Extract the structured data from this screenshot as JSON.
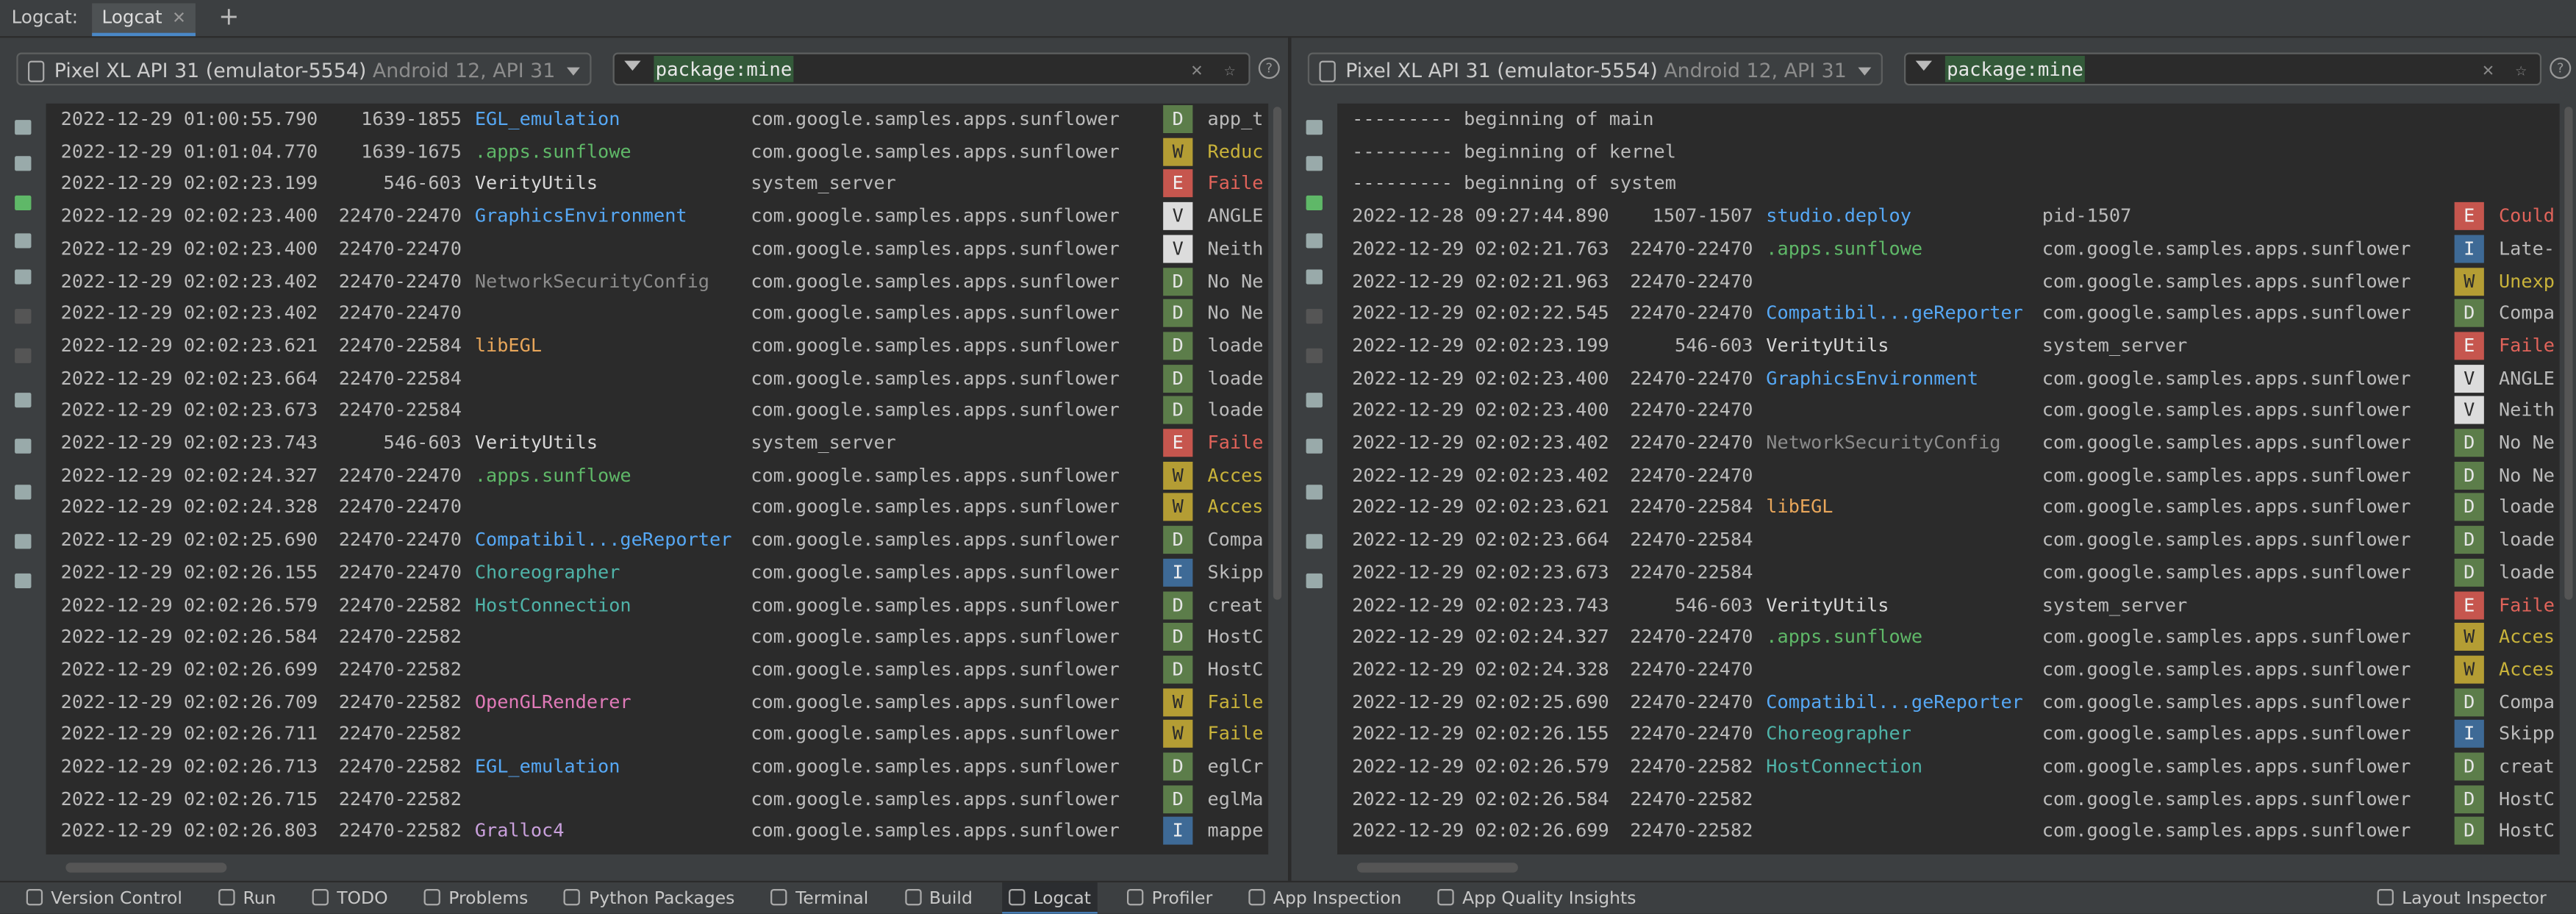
{
  "tabs": {
    "label": "Logcat:",
    "active_tab": "Logcat"
  },
  "panes": [
    {
      "device": "Pixel XL API 31 (emulator-5554)",
      "device_detail": "Android 12, API 31",
      "filter": "package:mine",
      "rows": [
        {
          "time": "2022-12-29 01:00:55.790",
          "pid": "1639-1855",
          "tag": "EGL_emulation",
          "tag_color": "#56a8f5",
          "package": "com.google.samples.apps.sunflower",
          "level": "D",
          "message": "app_t"
        },
        {
          "time": "2022-12-29 01:01:04.770",
          "pid": "1639-1675",
          "tag": ".apps.sunflowe",
          "tag_color": "#5fb868",
          "package": "com.google.samples.apps.sunflower",
          "level": "W",
          "message": "Reduc"
        },
        {
          "time": "2022-12-29 02:02:23.199",
          "pid": "546-603",
          "tag": "VerityUtils",
          "tag_color": "#d8d8d8",
          "package": "system_server",
          "level": "E",
          "message": "Faile"
        },
        {
          "time": "2022-12-29 02:02:23.400",
          "pid": "22470-22470",
          "tag": "GraphicsEnvironment",
          "tag_color": "#56a8f5",
          "package": "com.google.samples.apps.sunflower",
          "level": "V",
          "message": "ANGLE"
        },
        {
          "time": "2022-12-29 02:02:23.400",
          "pid": "22470-22470",
          "package": "com.google.samples.apps.sunflower",
          "level": "V",
          "message": "Neith"
        },
        {
          "time": "2022-12-29 02:02:23.402",
          "pid": "22470-22470",
          "tag": "NetworkSecurityConfig",
          "tag_color": "#8c8c8c",
          "package": "com.google.samples.apps.sunflower",
          "level": "D",
          "message": "No Ne"
        },
        {
          "time": "2022-12-29 02:02:23.402",
          "pid": "22470-22470",
          "package": "com.google.samples.apps.sunflower",
          "level": "D",
          "message": "No Ne"
        },
        {
          "time": "2022-12-29 02:02:23.621",
          "pid": "22470-22584",
          "tag": "libEGL",
          "tag_color": "#e8a65a",
          "package": "com.google.samples.apps.sunflower",
          "level": "D",
          "message": "loade"
        },
        {
          "time": "2022-12-29 02:02:23.664",
          "pid": "22470-22584",
          "package": "com.google.samples.apps.sunflower",
          "level": "D",
          "message": "loade"
        },
        {
          "time": "2022-12-29 02:02:23.673",
          "pid": "22470-22584",
          "package": "com.google.samples.apps.sunflower",
          "level": "D",
          "message": "loade"
        },
        {
          "time": "2022-12-29 02:02:23.743",
          "pid": "546-603",
          "tag": "VerityUtils",
          "tag_color": "#d8d8d8",
          "package": "system_server",
          "level": "E",
          "message": "Faile"
        },
        {
          "time": "2022-12-29 02:02:24.327",
          "pid": "22470-22470",
          "tag": ".apps.sunflowe",
          "tag_color": "#5fb868",
          "package": "com.google.samples.apps.sunflower",
          "level": "W",
          "message": "Acces"
        },
        {
          "time": "2022-12-29 02:02:24.328",
          "pid": "22470-22470",
          "package": "com.google.samples.apps.sunflower",
          "level": "W",
          "message": "Acces"
        },
        {
          "time": "2022-12-29 02:02:25.690",
          "pid": "22470-22470",
          "tag": "Compatibil...geReporter",
          "tag_color": "#56a8f5",
          "package": "com.google.samples.apps.sunflower",
          "level": "D",
          "message": "Compa"
        },
        {
          "time": "2022-12-29 02:02:26.155",
          "pid": "22470-22470",
          "tag": "Choreographer",
          "tag_color": "#4fb3a8",
          "package": "com.google.samples.apps.sunflower",
          "level": "I",
          "message": "Skipp"
        },
        {
          "time": "2022-12-29 02:02:26.579",
          "pid": "22470-22582",
          "tag": "HostConnection",
          "tag_color": "#4fb3a8",
          "package": "com.google.samples.apps.sunflower",
          "level": "D",
          "message": "creat"
        },
        {
          "time": "2022-12-29 02:02:26.584",
          "pid": "22470-22582",
          "package": "com.google.samples.apps.sunflower",
          "level": "D",
          "message": "HostC"
        },
        {
          "time": "2022-12-29 02:02:26.699",
          "pid": "22470-22582",
          "package": "com.google.samples.apps.sunflower",
          "level": "D",
          "message": "HostC"
        },
        {
          "time": "2022-12-29 02:02:26.709",
          "pid": "22470-22582",
          "tag": "OpenGLRenderer",
          "tag_color": "#e07ab8",
          "package": "com.google.samples.apps.sunflower",
          "level": "W",
          "message": "Faile"
        },
        {
          "time": "2022-12-29 02:02:26.711",
          "pid": "22470-22582",
          "package": "com.google.samples.apps.sunflower",
          "level": "W",
          "message": "Faile"
        },
        {
          "time": "2022-12-29 02:02:26.713",
          "pid": "22470-22582",
          "tag": "EGL_emulation",
          "tag_color": "#56a8f5",
          "package": "com.google.samples.apps.sunflower",
          "level": "D",
          "message": "eglCr"
        },
        {
          "time": "2022-12-29 02:02:26.715",
          "pid": "22470-22582",
          "package": "com.google.samples.apps.sunflower",
          "level": "D",
          "message": "eglMa"
        },
        {
          "time": "2022-12-29 02:02:26.803",
          "pid": "22470-22582",
          "tag": "Gralloc4",
          "tag_color": "#c9a0dc",
          "package": "com.google.samples.apps.sunflower",
          "level": "I",
          "message": "mappe"
        }
      ]
    },
    {
      "device": "Pixel XL API 31 (emulator-5554)",
      "device_detail": "Android 12, API 31",
      "filter": "package:mine",
      "header_lines": [
        "--------- beginning of main",
        "--------- beginning of kernel",
        "--------- beginning of system"
      ],
      "rows": [
        {
          "time": "2022-12-28 09:27:44.890",
          "pid": "1507-1507",
          "tag": "studio.deploy",
          "tag_color": "#56a8f5",
          "package": "pid-1507",
          "level": "E",
          "message": "Could"
        },
        {
          "time": "2022-12-29 02:02:21.763",
          "pid": "22470-22470",
          "tag": ".apps.sunflowe",
          "tag_color": "#5fb868",
          "package": "com.google.samples.apps.sunflower",
          "level": "I",
          "message": "Late-"
        },
        {
          "time": "2022-12-29 02:02:21.963",
          "pid": "22470-22470",
          "package": "com.google.samples.apps.sunflower",
          "level": "W",
          "message": "Unexp"
        },
        {
          "time": "2022-12-29 02:02:22.545",
          "pid": "22470-22470",
          "tag": "Compatibil...geReporter",
          "tag_color": "#56a8f5",
          "package": "com.google.samples.apps.sunflower",
          "level": "D",
          "message": "Compa"
        },
        {
          "time": "2022-12-29 02:02:23.199",
          "pid": "546-603",
          "tag": "VerityUtils",
          "tag_color": "#d8d8d8",
          "package": "system_server",
          "level": "E",
          "message": "Faile"
        },
        {
          "time": "2022-12-29 02:02:23.400",
          "pid": "22470-22470",
          "tag": "GraphicsEnvironment",
          "tag_color": "#56a8f5",
          "package": "com.google.samples.apps.sunflower",
          "level": "V",
          "message": "ANGLE"
        },
        {
          "time": "2022-12-29 02:02:23.400",
          "pid": "22470-22470",
          "package": "com.google.samples.apps.sunflower",
          "level": "V",
          "message": "Neith"
        },
        {
          "time": "2022-12-29 02:02:23.402",
          "pid": "22470-22470",
          "tag": "NetworkSecurityConfig",
          "tag_color": "#8c8c8c",
          "package": "com.google.samples.apps.sunflower",
          "level": "D",
          "message": "No Ne"
        },
        {
          "time": "2022-12-29 02:02:23.402",
          "pid": "22470-22470",
          "package": "com.google.samples.apps.sunflower",
          "level": "D",
          "message": "No Ne"
        },
        {
          "time": "2022-12-29 02:02:23.621",
          "pid": "22470-22584",
          "tag": "libEGL",
          "tag_color": "#e8a65a",
          "package": "com.google.samples.apps.sunflower",
          "level": "D",
          "message": "loade"
        },
        {
          "time": "2022-12-29 02:02:23.664",
          "pid": "22470-22584",
          "package": "com.google.samples.apps.sunflower",
          "level": "D",
          "message": "loade"
        },
        {
          "time": "2022-12-29 02:02:23.673",
          "pid": "22470-22584",
          "package": "com.google.samples.apps.sunflower",
          "level": "D",
          "message": "loade"
        },
        {
          "time": "2022-12-29 02:02:23.743",
          "pid": "546-603",
          "tag": "VerityUtils",
          "tag_color": "#d8d8d8",
          "package": "system_server",
          "level": "E",
          "message": "Faile"
        },
        {
          "time": "2022-12-29 02:02:24.327",
          "pid": "22470-22470",
          "tag": ".apps.sunflowe",
          "tag_color": "#5fb868",
          "package": "com.google.samples.apps.sunflower",
          "level": "W",
          "message": "Acces"
        },
        {
          "time": "2022-12-29 02:02:24.328",
          "pid": "22470-22470",
          "package": "com.google.samples.apps.sunflower",
          "level": "W",
          "message": "Acces"
        },
        {
          "time": "2022-12-29 02:02:25.690",
          "pid": "22470-22470",
          "tag": "Compatibil...geReporter",
          "tag_color": "#56a8f5",
          "package": "com.google.samples.apps.sunflower",
          "level": "D",
          "message": "Compa"
        },
        {
          "time": "2022-12-29 02:02:26.155",
          "pid": "22470-22470",
          "tag": "Choreographer",
          "tag_color": "#4fb3a8",
          "package": "com.google.samples.apps.sunflower",
          "level": "I",
          "message": "Skipp"
        },
        {
          "time": "2022-12-29 02:02:26.579",
          "pid": "22470-22582",
          "tag": "HostConnection",
          "tag_color": "#4fb3a8",
          "package": "com.google.samples.apps.sunflower",
          "level": "D",
          "message": "creat"
        },
        {
          "time": "2022-12-29 02:02:26.584",
          "pid": "22470-22582",
          "package": "com.google.samples.apps.sunflower",
          "level": "D",
          "message": "HostC"
        },
        {
          "time": "2022-12-29 02:02:26.699",
          "pid": "22470-22582",
          "package": "com.google.samples.apps.sunflower",
          "level": "D",
          "message": "HostC"
        }
      ]
    }
  ],
  "bottom_bar": {
    "items": [
      "Version Control",
      "Run",
      "TODO",
      "Problems",
      "Python Packages",
      "Terminal",
      "Build",
      "Logcat",
      "Profiler",
      "App Inspection",
      "App Quality Insights"
    ],
    "active": "Logcat",
    "right_item": "Layout Inspector"
  }
}
